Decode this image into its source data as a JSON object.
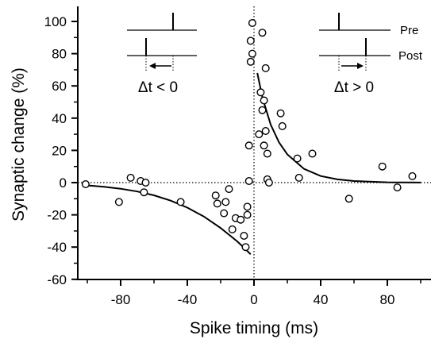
{
  "chart_data": {
    "type": "scatter",
    "title": "",
    "xlabel": "Spike timing (ms)",
    "ylabel": "Synaptic change (%)",
    "xlim": [
      -105,
      105
    ],
    "ylim": [
      -60,
      110
    ],
    "x_ticks": [
      -80,
      -40,
      0,
      40,
      80
    ],
    "x_tick_labels": [
      "-80",
      "-40",
      "0",
      "40",
      "80"
    ],
    "y_ticks": [
      -60,
      -40,
      -20,
      0,
      20,
      40,
      60,
      80,
      100
    ],
    "y_tick_labels": [
      "-60",
      "-40",
      "-20",
      "0",
      "20",
      "40",
      "60",
      "80",
      "100"
    ],
    "grid": false,
    "reference_lines": {
      "x0_dotted": true,
      "y0_dotted": true
    },
    "series": [
      {
        "marker": "open-circle",
        "x": [
          -101,
          -81,
          -74,
          -68,
          -66,
          -65,
          -44,
          -23,
          -22,
          -18,
          -17,
          -15,
          -13,
          -11,
          -8,
          -6,
          -5,
          -4,
          -4,
          -3,
          -3,
          -2,
          -2,
          -1,
          -1,
          3,
          4,
          5,
          5,
          6,
          6,
          7,
          7,
          8,
          8,
          9,
          16,
          17,
          26,
          27,
          35,
          57,
          77,
          86,
          95
        ],
        "y": [
          -1,
          -12,
          3,
          1,
          -6,
          0,
          -12,
          -8,
          -13,
          -19,
          -12,
          -4,
          -29,
          -22,
          -23,
          -33,
          -40,
          -20,
          -15,
          1,
          23,
          75,
          88,
          80,
          99,
          30,
          56,
          45,
          93,
          23,
          51,
          71,
          32,
          18,
          2,
          0,
          43,
          35,
          15,
          3,
          18,
          -10,
          10,
          -3,
          4
        ]
      }
    ],
    "fit_curves": [
      {
        "name": "",
        "branch": "negative",
        "x": [
          -103,
          -90,
          -80,
          -70,
          -60,
          -50,
          -40,
          -30,
          -20,
          -15,
          -10,
          -5,
          -2
        ],
        "y": [
          -1.5,
          -2.6,
          -3.8,
          -5.5,
          -7.9,
          -11.2,
          -15.5,
          -21.1,
          -28.2,
          -32.3,
          -36.5,
          -41.4,
          -44.5
        ]
      },
      {
        "name": "",
        "branch": "positive",
        "x": [
          2,
          5,
          10,
          15,
          20,
          30,
          40,
          50,
          60,
          80,
          100
        ],
        "y": [
          68,
          53,
          36,
          25,
          17.5,
          8.5,
          4.1,
          2.0,
          1.0,
          0.2,
          0.05
        ]
      }
    ],
    "annotations": {
      "pre_label": "Pre",
      "post_label": "Post",
      "dt_negative": "Δt < 0",
      "dt_positive": "Δt > 0"
    }
  }
}
